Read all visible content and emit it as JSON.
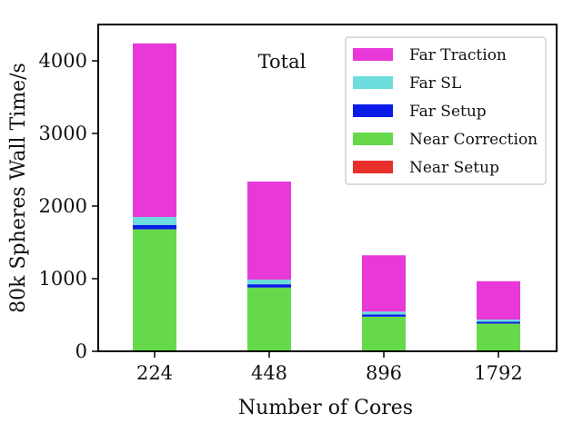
{
  "chart_data": {
    "type": "bar",
    "stacked": true,
    "title": "Total",
    "xlabel": "Number of Cores",
    "ylabel": "80k Spheres Wall Time/s",
    "categories": [
      "224",
      "448",
      "896",
      "1792"
    ],
    "ylim": [
      0,
      4500
    ],
    "yticks": [
      0,
      1000,
      2000,
      3000,
      4000
    ],
    "grid": false,
    "legend_position": "top-right",
    "series": [
      {
        "name": "Near Setup",
        "color": "#e8302a",
        "values": [
          5,
          3,
          2,
          2
        ]
      },
      {
        "name": "Near Correction",
        "color": "#66d94a",
        "values": [
          1675,
          875,
          475,
          380
        ]
      },
      {
        "name": "Far Setup",
        "color": "#0b1be8",
        "values": [
          60,
          45,
          30,
          25
        ]
      },
      {
        "name": "Far SL",
        "color": "#6ddcdc",
        "values": [
          110,
          65,
          40,
          30
        ]
      },
      {
        "name": "Far Traction",
        "color": "#e838d8",
        "values": [
          2390,
          1350,
          775,
          528
        ]
      }
    ],
    "legend_order": [
      "Far Traction",
      "Far SL",
      "Far Setup",
      "Near Correction",
      "Near Setup"
    ]
  }
}
